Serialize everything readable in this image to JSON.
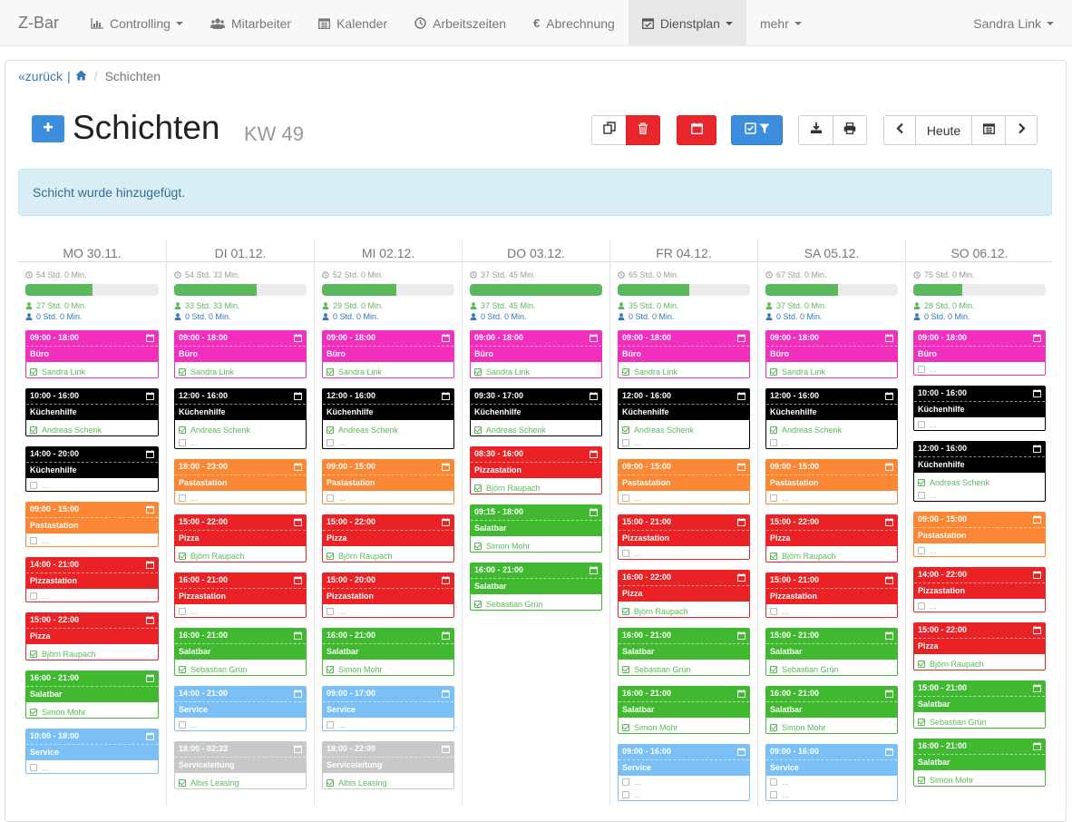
{
  "navbar": {
    "brand": "Z-Bar",
    "items": [
      {
        "label": "Controlling",
        "icon": "bar-chart-icon",
        "dropdown": true
      },
      {
        "label": "Mitarbeiter",
        "icon": "users-icon"
      },
      {
        "label": "Kalender",
        "icon": "calendar-icon"
      },
      {
        "label": "Arbeitszeiten",
        "icon": "clock-icon"
      },
      {
        "label": "Abrechnung",
        "icon": "euro-icon"
      },
      {
        "label": "Dienstplan",
        "icon": "calendar-check-icon",
        "dropdown": true,
        "active": true
      },
      {
        "label": "mehr",
        "dropdown": true
      }
    ],
    "user": "Sandra Link"
  },
  "breadcrumb": {
    "back": "zurück",
    "current": "Schichten"
  },
  "page": {
    "title": "Schichten",
    "week": "KW 49"
  },
  "toolbar": {
    "today_label": "Heute"
  },
  "alert": {
    "text": "Schicht wurde hinzugefügt."
  },
  "colors": {
    "Büro": "#f22ebd",
    "Küchenhilfe": "#000000",
    "Pastastation": "#fb8633",
    "Pizzastation": "#ea2226",
    "Pizza": "#ea2226",
    "Salatbar": "#40b82f",
    "Service": "#7abff5",
    "Serviceleitung": "#c8c8c8"
  },
  "days": [
    {
      "label": "MO 30.11.",
      "total": "54 Std. 0 Min.",
      "progress": 0.5,
      "planned": "27 Std. 0 Min.",
      "open": "0 Std. 0 Min.",
      "shifts": [
        {
          "time": "09:00 - 18:00",
          "role": "Büro",
          "people": [
            "Sandra Link"
          ]
        },
        {
          "time": "10:00 - 16:00",
          "role": "Küchenhilfe",
          "people": [
            "Andreas Schenk"
          ]
        },
        {
          "time": "14:00 - 20:00",
          "role": "Küchenhilfe",
          "people": [
            "..."
          ]
        },
        {
          "time": "09:00 - 15:00",
          "role": "Pastastation",
          "people": [
            "..."
          ]
        },
        {
          "time": "14:00 - 21:00",
          "role": "Pizzastation",
          "people": [
            "..."
          ]
        },
        {
          "time": "15:00 - 22:00",
          "role": "Pizza",
          "people": [
            "Björn Raupach"
          ]
        },
        {
          "time": "16:00 - 21:00",
          "role": "Salatbar",
          "people": [
            "Simon Mohr"
          ]
        },
        {
          "time": "10:00 - 18:00",
          "role": "Service",
          "people": [
            "..."
          ]
        }
      ]
    },
    {
      "label": "DI 01.12.",
      "total": "54 Std. 33 Min.",
      "progress": 0.62,
      "planned": "33 Std. 33 Min.",
      "open": "0 Std. 0 Min.",
      "shifts": [
        {
          "time": "09:00 - 18:00",
          "role": "Büro",
          "people": [
            "Sandra Link"
          ]
        },
        {
          "time": "12:00 - 16:00",
          "role": "Küchenhilfe",
          "people": [
            "Andreas Schenk",
            "..."
          ]
        },
        {
          "time": "18:00 - 23:00",
          "role": "Pastastation",
          "people": [
            "..."
          ]
        },
        {
          "time": "15:00 - 22:00",
          "role": "Pizza",
          "people": [
            "Björn Raupach"
          ]
        },
        {
          "time": "16:00 - 21:00",
          "role": "Pizzastation",
          "people": [
            "..."
          ]
        },
        {
          "time": "16:00 - 21:00",
          "role": "Salatbar",
          "people": [
            "Sebastian Grün"
          ]
        },
        {
          "time": "14:00 - 21:00",
          "role": "Service",
          "people": [
            "..."
          ]
        },
        {
          "time": "18:00 - 02:33",
          "role": "Serviceleitung",
          "people": [
            "Albis Leasing"
          ]
        }
      ]
    },
    {
      "label": "MI 02.12.",
      "total": "52 Std. 0 Min.",
      "progress": 0.56,
      "planned": "29 Std. 0 Min.",
      "open": "0 Std. 0 Min.",
      "shifts": [
        {
          "time": "09:00 - 18:00",
          "role": "Büro",
          "people": [
            "Sandra Link"
          ]
        },
        {
          "time": "12:00 - 16:00",
          "role": "Küchenhilfe",
          "people": [
            "Andreas Schenk",
            "..."
          ]
        },
        {
          "time": "09:00 - 15:00",
          "role": "Pastastation",
          "people": [
            "..."
          ]
        },
        {
          "time": "15:00 - 22:00",
          "role": "Pizza",
          "people": [
            "Björn Raupach"
          ]
        },
        {
          "time": "15:00 - 20:00",
          "role": "Pizzastation",
          "people": [
            "..."
          ]
        },
        {
          "time": "16:00 - 21:00",
          "role": "Salatbar",
          "people": [
            "Simon Mohr"
          ]
        },
        {
          "time": "09:00 - 17:00",
          "role": "Service",
          "people": [
            "..."
          ]
        },
        {
          "time": "18:00 - 22:00",
          "role": "Serviceleitung",
          "people": [
            "Albis Leasing"
          ]
        }
      ]
    },
    {
      "label": "DO 03.12.",
      "total": "37 Std. 45 Min.",
      "progress": 1.0,
      "planned": "37 Std. 45 Min.",
      "open": "0 Std. 0 Min.",
      "shifts": [
        {
          "time": "09:00 - 18:00",
          "role": "Büro",
          "people": [
            "Sandra Link"
          ]
        },
        {
          "time": "09:30 - 17:00",
          "role": "Küchenhilfe",
          "people": [
            "Andreas Schenk"
          ]
        },
        {
          "time": "08:30 - 16:00",
          "role": "Pizzastation",
          "people": [
            "Björn Raupach"
          ]
        },
        {
          "time": "09:15 - 18:00",
          "role": "Salatbar",
          "people": [
            "Simon Mohr"
          ]
        },
        {
          "time": "16:00 - 21:00",
          "role": "Salatbar",
          "people": [
            "Sebastian Grün"
          ]
        }
      ]
    },
    {
      "label": "FR 04.12.",
      "total": "65 Std. 0 Min.",
      "progress": 0.54,
      "planned": "35 Std. 0 Min.",
      "open": "0 Std. 0 Min.",
      "shifts": [
        {
          "time": "09:00 - 18:00",
          "role": "Büro",
          "people": [
            "Sandra Link"
          ]
        },
        {
          "time": "12:00 - 16:00",
          "role": "Küchenhilfe",
          "people": [
            "Andreas Schenk",
            "..."
          ]
        },
        {
          "time": "09:00 - 15:00",
          "role": "Pastastation",
          "people": [
            "..."
          ]
        },
        {
          "time": "15:00 - 21:00",
          "role": "Pizzastation",
          "people": [
            "..."
          ]
        },
        {
          "time": "16:00 - 22:00",
          "role": "Pizza",
          "people": [
            "Björn Raupach"
          ]
        },
        {
          "time": "16:00 - 21:00",
          "role": "Salatbar",
          "people": [
            "Sebastian Grün"
          ]
        },
        {
          "time": "16:00 - 21:00",
          "role": "Salatbar",
          "people": [
            "Simon Mohr"
          ]
        },
        {
          "time": "09:00 - 16:00",
          "role": "Service",
          "people": [
            "...",
            "..."
          ]
        }
      ]
    },
    {
      "label": "SA 05.12.",
      "total": "67 Std. 0 Min.",
      "progress": 0.55,
      "planned": "37 Std. 0 Min.",
      "open": "0 Std. 0 Min.",
      "shifts": [
        {
          "time": "09:00 - 18:00",
          "role": "Büro",
          "people": [
            "Sandra Link"
          ]
        },
        {
          "time": "12:00 - 16:00",
          "role": "Küchenhilfe",
          "people": [
            "Andreas Schenk",
            "..."
          ]
        },
        {
          "time": "09:00 - 15:00",
          "role": "Pastastation",
          "people": [
            "..."
          ]
        },
        {
          "time": "15:00 - 22:00",
          "role": "Pizza",
          "people": [
            "Björn Raupach"
          ]
        },
        {
          "time": "15:00 - 21:00",
          "role": "Pizzastation",
          "people": [
            "..."
          ]
        },
        {
          "time": "15:00 - 21:00",
          "role": "Salatbar",
          "people": [
            "Sebastian Grün"
          ]
        },
        {
          "time": "16:00 - 21:00",
          "role": "Salatbar",
          "people": [
            "Simon Mohr"
          ]
        },
        {
          "time": "09:00 - 16:00",
          "role": "Service",
          "people": [
            "...",
            "..."
          ]
        }
      ]
    },
    {
      "label": "SO 06.12.",
      "total": "75 Std. 0 Min.",
      "progress": 0.37,
      "planned": "28 Std. 0 Min.",
      "open": "0 Std. 0 Min.",
      "shifts": [
        {
          "time": "09:00 - 18:00",
          "role": "Büro",
          "people": [
            "..."
          ]
        },
        {
          "time": "10:00 - 16:00",
          "role": "Küchenhilfe",
          "people": [
            "..."
          ]
        },
        {
          "time": "12:00 - 16:00",
          "role": "Küchenhilfe",
          "people": [
            "Andreas Schenk",
            "..."
          ]
        },
        {
          "time": "09:00 - 15:00",
          "role": "Pastastation",
          "people": [
            "..."
          ]
        },
        {
          "time": "14:00 - 22:00",
          "role": "Pizzastation",
          "people": [
            "..."
          ]
        },
        {
          "time": "15:00 - 22:00",
          "role": "Pizza",
          "people": [
            "Björn Raupach"
          ]
        },
        {
          "time": "15:00 - 21:00",
          "role": "Salatbar",
          "people": [
            "Sebastian Grün"
          ]
        },
        {
          "time": "16:00 - 21:00",
          "role": "Salatbar",
          "people": [
            "Simon Mohr"
          ]
        }
      ]
    }
  ]
}
